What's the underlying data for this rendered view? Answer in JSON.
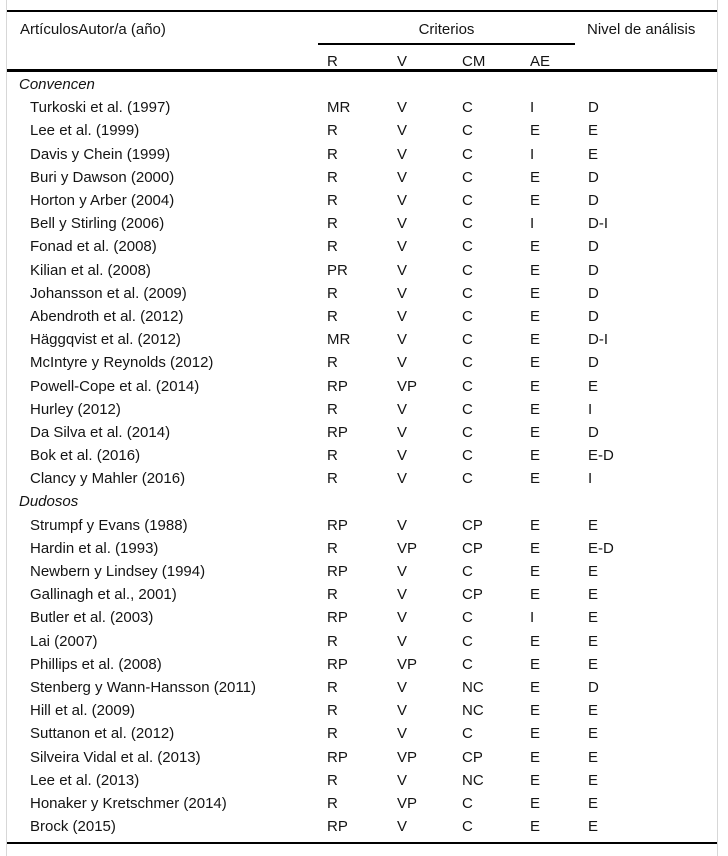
{
  "table": {
    "col1_header": "ArtículosAutor/a (año)",
    "criterios_header": "Criterios",
    "nivel_header": "Nivel de análisis",
    "subheaders": {
      "r": "R",
      "v": "V",
      "cm": "CM",
      "ae": "AE"
    },
    "sections": [
      {
        "label": "Convencen",
        "rows": [
          {
            "author": "Turkoski et al. (1997)",
            "cells": [
              "MR",
              "V",
              "C",
              "I",
              "D"
            ]
          },
          {
            "author": "Lee et al. (1999)",
            "cells": [
              "R",
              "V",
              "C",
              "E",
              "E"
            ]
          },
          {
            "author": "Davis y Chein (1999)",
            "cells": [
              "R",
              "V",
              "C",
              "I",
              "E"
            ]
          },
          {
            "author": "Buri y Dawson (2000)",
            "cells": [
              "R",
              "V",
              "C",
              "E",
              "D"
            ]
          },
          {
            "author": "Horton y Arber (2004)",
            "cells": [
              "R",
              "V",
              "C",
              "E",
              "D"
            ]
          },
          {
            "author": "Bell y Stirling (2006)",
            "cells": [
              "R",
              "V",
              "C",
              "I",
              "D-I"
            ]
          },
          {
            "author": "Fonad et al. (2008)",
            "cells": [
              "R",
              "V",
              "C",
              "E",
              "D"
            ]
          },
          {
            "author": "Kilian et al. (2008)",
            "cells": [
              "PR",
              "V",
              "C",
              "E",
              "D"
            ]
          },
          {
            "author": "Johansson et al. (2009)",
            "cells": [
              "R",
              "V",
              "C",
              "E",
              "D"
            ]
          },
          {
            "author": "Abendroth et al. (2012)",
            "cells": [
              "R",
              "V",
              "C",
              "E",
              "D"
            ]
          },
          {
            "author": "Häggqvist et al. (2012)",
            "cells": [
              "MR",
              "V",
              "C",
              "E",
              "D-I"
            ]
          },
          {
            "author": "McIntyre y Reynolds (2012)",
            "cells": [
              "R",
              "V",
              "C",
              "E",
              "D"
            ]
          },
          {
            "author": "Powell-Cope et al. (2014)",
            "cells": [
              "RP",
              "VP",
              "C",
              "E",
              "E"
            ]
          },
          {
            "author": "Hurley (2012)",
            "cells": [
              "R",
              "V",
              "C",
              "E",
              "I"
            ]
          },
          {
            "author": "Da Silva et al. (2014)",
            "cells": [
              "RP",
              "V",
              "C",
              "E",
              "D"
            ]
          },
          {
            "author": "Bok et al. (2016)",
            "cells": [
              "R",
              "V",
              "C",
              "E",
              "E-D"
            ]
          },
          {
            "author": "Clancy y Mahler (2016)",
            "cells": [
              "R",
              "V",
              "C",
              "E",
              "I"
            ]
          }
        ]
      },
      {
        "label": "Dudosos",
        "rows": [
          {
            "author": "Strumpf y Evans (1988)",
            "cells": [
              "RP",
              "V",
              "CP",
              "E",
              "E"
            ]
          },
          {
            "author": "Hardin et al. (1993)",
            "cells": [
              "R",
              "VP",
              "CP",
              "E",
              "E-D"
            ]
          },
          {
            "author": "Newbern y Lindsey (1994)",
            "cells": [
              "RP",
              "V",
              "C",
              "E",
              "E"
            ]
          },
          {
            "author": "Gallinagh et al., 2001)",
            "cells": [
              "R",
              "V",
              "CP",
              "E",
              "E"
            ]
          },
          {
            "author": "Butler et al. (2003)",
            "cells": [
              "RP",
              "V",
              "C",
              "I",
              "E"
            ]
          },
          {
            "author": "Lai (2007)",
            "cells": [
              "R",
              "V",
              "C",
              "E",
              "E"
            ]
          },
          {
            "author": "Phillips et al. (2008)",
            "cells": [
              "RP",
              "VP",
              "C",
              "E",
              "E"
            ]
          },
          {
            "author": "Stenberg y Wann-Hansson (2011)",
            "cells": [
              "R",
              "V",
              "NC",
              "E",
              "D"
            ]
          },
          {
            "author": "Hill et al. (2009)",
            "cells": [
              "R",
              "V",
              "NC",
              "E",
              "E"
            ]
          },
          {
            "author": "Suttanon et al. (2012)",
            "cells": [
              "R",
              "V",
              "C",
              "E",
              "E"
            ]
          },
          {
            "author": "Silveira Vidal et al. (2013)",
            "cells": [
              "RP",
              "VP",
              "CP",
              "E",
              "E"
            ]
          },
          {
            "author": "Lee et al. (2013)",
            "cells": [
              "R",
              "V",
              "NC",
              "E",
              "E"
            ]
          },
          {
            "author": "Honaker y Kretschmer (2014)",
            "cells": [
              "R",
              "VP",
              "C",
              "E",
              "E"
            ]
          },
          {
            "author": "Brock (2015)",
            "cells": [
              "RP",
              "V",
              "C",
              "E",
              "E"
            ]
          }
        ]
      }
    ]
  }
}
